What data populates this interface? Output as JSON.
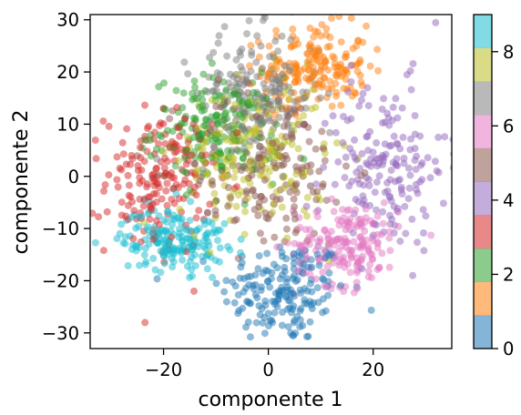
{
  "chart_data": {
    "type": "scatter",
    "title": "",
    "xlabel": "componente 1",
    "ylabel": "componente 2",
    "xlim": [
      -34,
      35
    ],
    "ylim": [
      -33,
      31
    ],
    "xticks": [
      -20,
      0,
      20
    ],
    "yticks": [
      -30,
      -20,
      -10,
      0,
      10,
      20,
      30
    ],
    "grid": false,
    "point_alpha": 0.5,
    "colorbar": {
      "cmap": "tab10",
      "range": [
        0,
        9
      ],
      "ticks": [
        0,
        2,
        4,
        6,
        8
      ],
      "colors": [
        "#1f77b4",
        "#ff7f0e",
        "#2ca02c",
        "#d62728",
        "#9467bd",
        "#8c564b",
        "#e377c2",
        "#7f7f7f",
        "#bcbd22",
        "#17becf"
      ]
    },
    "clusters": [
      {
        "label": 0,
        "color": "#1f77b4",
        "center": [
          3,
          -22
        ],
        "spread": [
          6,
          5
        ],
        "count": 180
      },
      {
        "label": 1,
        "color": "#ff7f0e",
        "center": [
          9,
          21
        ],
        "spread": [
          5,
          4
        ],
        "count": 180
      },
      {
        "label": 2,
        "color": "#2ca02c",
        "center": [
          -10,
          9
        ],
        "spread": [
          6,
          5
        ],
        "count": 180
      },
      {
        "label": 3,
        "color": "#d62728",
        "center": [
          -21,
          -1
        ],
        "spread": [
          5,
          7
        ],
        "count": 180
      },
      {
        "label": 4,
        "color": "#9467bd",
        "center": [
          22,
          2
        ],
        "spread": [
          6,
          8
        ],
        "count": 180
      },
      {
        "label": 5,
        "color": "#8c564b",
        "center": [
          0,
          2
        ],
        "spread": [
          8,
          8
        ],
        "count": 180
      },
      {
        "label": 6,
        "color": "#e377c2",
        "center": [
          15,
          -13
        ],
        "spread": [
          5,
          4
        ],
        "count": 180
      },
      {
        "label": 7,
        "color": "#7f7f7f",
        "center": [
          -2,
          16
        ],
        "spread": [
          6,
          6
        ],
        "count": 180
      },
      {
        "label": 8,
        "color": "#bcbd22",
        "center": [
          -3,
          4
        ],
        "spread": [
          7,
          7
        ],
        "count": 180
      },
      {
        "label": 9,
        "color": "#17becf",
        "center": [
          -18,
          -12
        ],
        "spread": [
          5,
          3
        ],
        "count": 180
      }
    ]
  }
}
